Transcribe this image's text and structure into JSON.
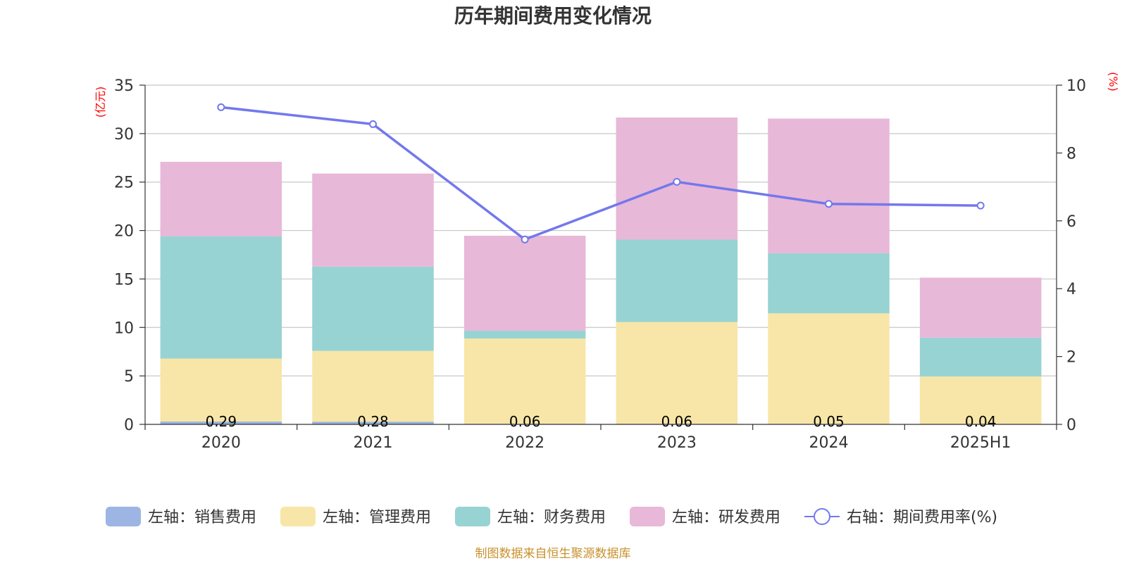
{
  "title": "历年期间费用变化情况",
  "source": "制图数据来自恒生聚源数据库",
  "chart_data": {
    "type": "bar",
    "stacked": true,
    "title": "历年期间费用变化情况",
    "categories": [
      "2020",
      "2021",
      "2022",
      "2023",
      "2024",
      "2025H1"
    ],
    "left_axis": {
      "unit": "(亿元)",
      "ylim": [
        0,
        35
      ],
      "ticks": [
        "0",
        "5",
        "10",
        "15",
        "20",
        "25",
        "30",
        "35"
      ]
    },
    "right_axis": {
      "unit": "(%)",
      "ylim": [
        0,
        10
      ],
      "ticks": [
        "0",
        "2",
        "4",
        "6",
        "8",
        "10"
      ]
    },
    "grid": true,
    "legend_position": "bottom",
    "series": [
      {
        "name": "左轴：销售费用",
        "type": "bar",
        "axis": "left",
        "color": "#9db5e2",
        "values": [
          0.29,
          0.28,
          0.06,
          0.06,
          0.05,
          0.04
        ],
        "labels": [
          "0.29",
          "0.28",
          "0.06",
          "0.06",
          "0.05",
          "0.04"
        ]
      },
      {
        "name": "左轴：管理费用",
        "type": "bar",
        "axis": "left",
        "color": "#f8e6a8",
        "values": [
          6.5,
          7.3,
          8.8,
          10.5,
          11.4,
          4.9
        ]
      },
      {
        "name": "左轴：财务费用",
        "type": "bar",
        "axis": "left",
        "color": "#98d3d3",
        "values": [
          12.6,
          8.7,
          0.8,
          8.5,
          6.2,
          4.0
        ]
      },
      {
        "name": "左轴：研发费用",
        "type": "bar",
        "axis": "left",
        "color": "#e8b8d8",
        "values": [
          7.7,
          9.6,
          9.8,
          12.6,
          13.9,
          6.2
        ]
      },
      {
        "name": "右轴：期间费用率(%)",
        "type": "line",
        "axis": "right",
        "color": "#7378ec",
        "values": [
          9.35,
          8.85,
          5.45,
          7.15,
          6.5,
          6.45
        ]
      }
    ]
  }
}
